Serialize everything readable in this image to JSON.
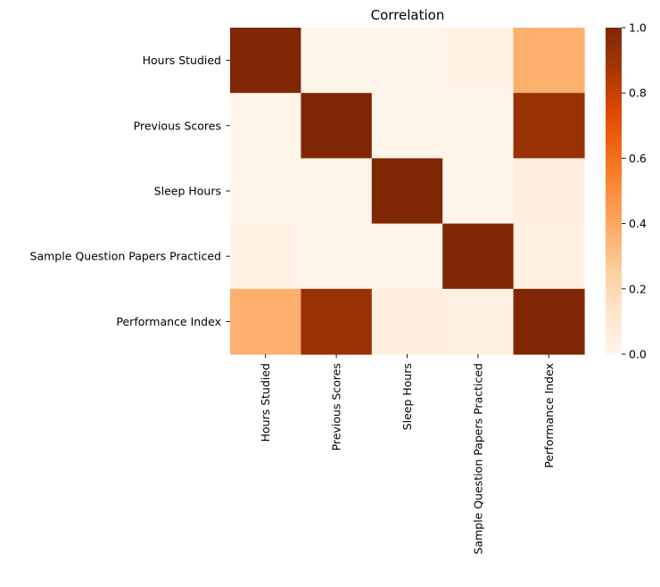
{
  "chart_data": {
    "type": "heatmap",
    "title": "Correlation",
    "xlabel": "",
    "ylabel": "",
    "x_categories": [
      "Hours Studied",
      "Previous Scores",
      "Sleep Hours",
      "Sample Question Papers Practiced",
      "Performance Index"
    ],
    "y_categories": [
      "Hours Studied",
      "Previous Scores",
      "Sleep Hours",
      "Sample Question Papers Practiced",
      "Performance Index"
    ],
    "values": [
      [
        1.0,
        -0.01,
        0.0,
        0.02,
        0.37
      ],
      [
        -0.01,
        1.0,
        0.01,
        0.01,
        0.92
      ],
      [
        0.0,
        0.01,
        1.0,
        0.0,
        0.05
      ],
      [
        0.02,
        0.01,
        0.0,
        1.0,
        0.04
      ],
      [
        0.37,
        0.92,
        0.05,
        0.04,
        1.0
      ]
    ],
    "colormap": "Oranges",
    "colorbar": {
      "range": [
        0.0,
        1.0
      ],
      "ticks": [
        "0.0",
        "0.2",
        "0.4",
        "0.6",
        "0.8",
        "1.0"
      ]
    },
    "grid": false,
    "legend": "colorbar-right"
  }
}
